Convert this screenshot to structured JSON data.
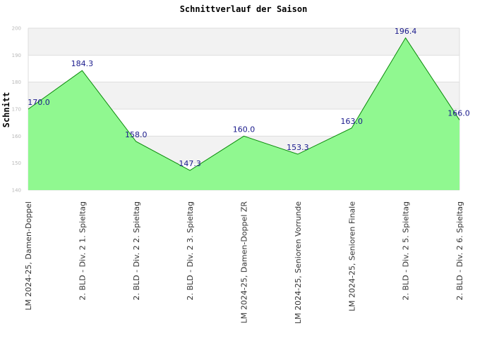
{
  "chart_data": {
    "type": "area",
    "title": "Schnittverlauf der Saison",
    "xlabel": "",
    "ylabel": "Schnitt",
    "ylim": [
      140,
      200
    ],
    "yticks": [
      140,
      150,
      160,
      170,
      180,
      190,
      200
    ],
    "ytick_labels": [
      "140",
      "150",
      "160",
      "170",
      "180",
      "190",
      "200"
    ],
    "grid": true,
    "legend": "none",
    "categories": [
      "LM 2024-25, Damen-Doppel",
      "2. BLD - Div. 2   1. Spieltag",
      "2. BLD - Div. 2   2. Spieltag",
      "2. BLD - Div. 2   3. Spieltag",
      "LM 2024-25, Damen-Doppel ZR",
      "LM 2024-25, Senioren Vorrunde",
      "LM 2024-25, Senioren Finale",
      "2. BLD - Div. 2  5. Spieltag",
      "2. BLD - Div. 2  6. Spieltag"
    ],
    "series": [
      {
        "values": [
          170.0,
          184.3,
          158.0,
          147.3,
          160.0,
          153.3,
          163.0,
          196.4,
          166.0
        ],
        "labels": [
          "170.0",
          "184.3",
          "158.0",
          "147.3",
          "160.0",
          "153.3",
          "163.0",
          "196.4",
          "166.0"
        ]
      }
    ],
    "colors": {
      "fill": "#90f890",
      "line": "#0a8a0a",
      "band": "#f2f2f2",
      "grid": "#dddddd",
      "data_label": "#1a1a8c"
    }
  }
}
